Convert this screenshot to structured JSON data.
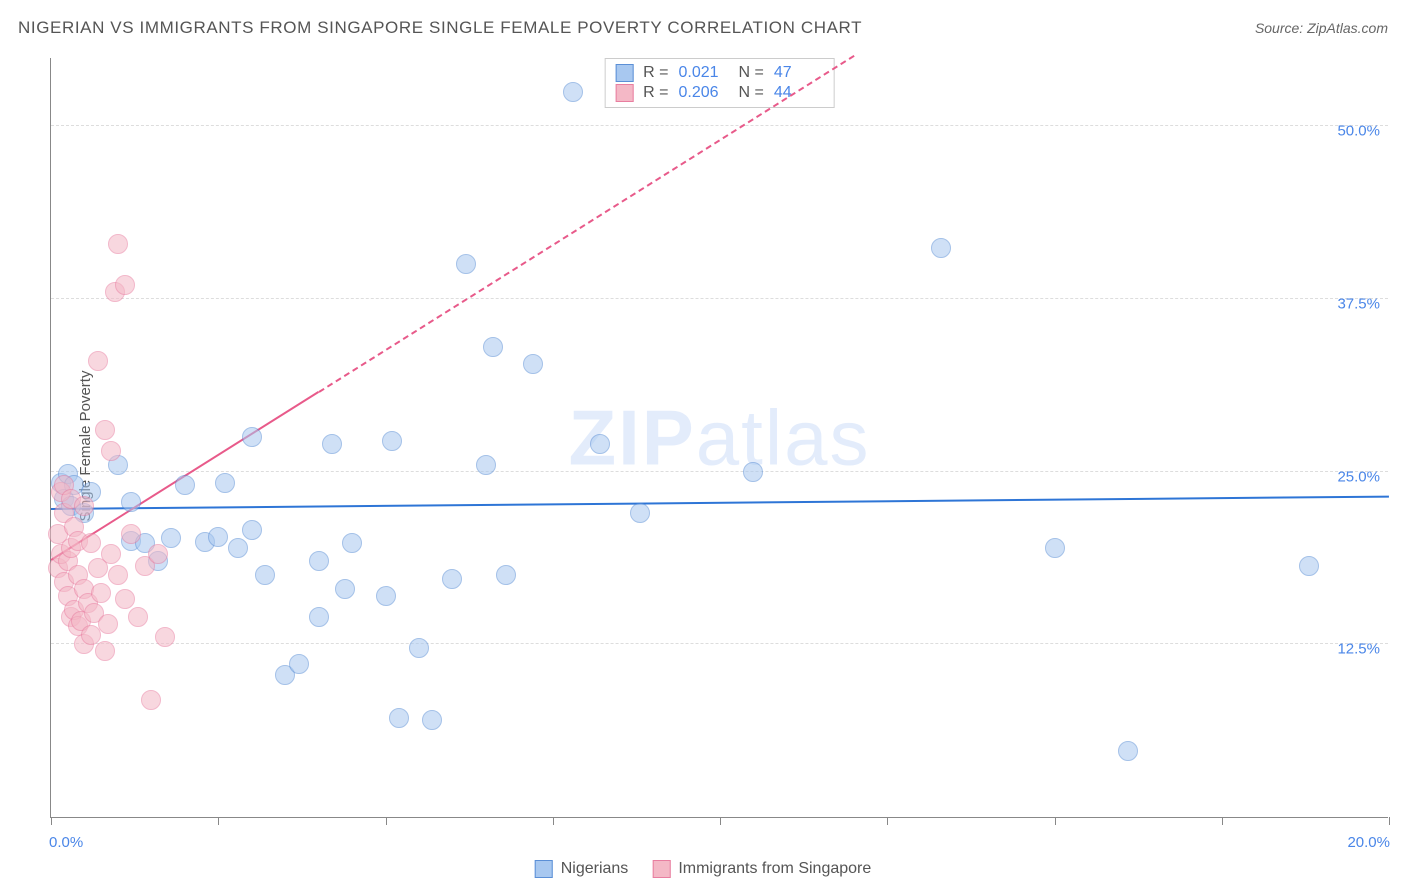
{
  "title": "NIGERIAN VS IMMIGRANTS FROM SINGAPORE SINGLE FEMALE POVERTY CORRELATION CHART",
  "source": "Source: ZipAtlas.com",
  "y_axis_label": "Single Female Poverty",
  "watermark_bold": "ZIP",
  "watermark_light": "atlas",
  "chart": {
    "type": "scatter",
    "xlim": [
      0,
      20
    ],
    "ylim": [
      0,
      55
    ],
    "x_ticks": [
      0,
      2.5,
      5,
      7.5,
      10,
      12.5,
      15,
      17.5,
      20
    ],
    "x_tick_labels": {
      "0": "0.0%",
      "20": "20.0%"
    },
    "y_grid": [
      12.5,
      25.0,
      37.5,
      50.0
    ],
    "y_tick_labels": [
      "12.5%",
      "25.0%",
      "37.5%",
      "50.0%"
    ],
    "background_color": "#ffffff",
    "grid_color": "#dddddd",
    "axis_color": "#888888",
    "label_color": "#4a86e8",
    "marker_radius": 10,
    "marker_opacity": 0.55,
    "series": [
      {
        "key": "nigerians",
        "label": "Nigerians",
        "fill": "#a8c8f0",
        "stroke": "#5b8fd6",
        "trend_color": "#2e75d6",
        "trend_width": 2.5,
        "trend_dash_after_x": 20,
        "trend": {
          "x1": 0,
          "y1": 22.2,
          "x2": 20,
          "y2": 23.1
        },
        "R": "0.021",
        "N": "47",
        "points": [
          [
            0.15,
            24.2
          ],
          [
            0.2,
            23.0
          ],
          [
            0.25,
            24.8
          ],
          [
            0.3,
            22.5
          ],
          [
            0.35,
            24.0
          ],
          [
            0.5,
            22.0
          ],
          [
            0.6,
            23.5
          ],
          [
            1.0,
            25.5
          ],
          [
            1.2,
            20.0
          ],
          [
            1.2,
            22.8
          ],
          [
            1.4,
            19.8
          ],
          [
            1.6,
            18.5
          ],
          [
            1.8,
            20.2
          ],
          [
            2.0,
            24.0
          ],
          [
            2.3,
            19.9
          ],
          [
            2.5,
            20.3
          ],
          [
            2.6,
            24.2
          ],
          [
            2.8,
            19.5
          ],
          [
            3.0,
            20.8
          ],
          [
            3.0,
            27.5
          ],
          [
            3.2,
            17.5
          ],
          [
            3.5,
            10.3
          ],
          [
            3.7,
            11.1
          ],
          [
            4.0,
            14.5
          ],
          [
            4.0,
            18.5
          ],
          [
            4.2,
            27.0
          ],
          [
            4.4,
            16.5
          ],
          [
            4.5,
            19.8
          ],
          [
            5.0,
            16.0
          ],
          [
            5.1,
            27.2
          ],
          [
            5.2,
            7.2
          ],
          [
            5.5,
            12.2
          ],
          [
            5.7,
            7.0
          ],
          [
            6.0,
            17.2
          ],
          [
            6.2,
            40.0
          ],
          [
            6.5,
            25.5
          ],
          [
            6.6,
            34.0
          ],
          [
            6.8,
            17.5
          ],
          [
            7.2,
            32.8
          ],
          [
            7.8,
            52.5
          ],
          [
            8.2,
            27.0
          ],
          [
            8.8,
            22.0
          ],
          [
            10.5,
            25.0
          ],
          [
            13.3,
            41.2
          ],
          [
            15.0,
            19.5
          ],
          [
            16.1,
            4.8
          ],
          [
            18.8,
            18.2
          ]
        ]
      },
      {
        "key": "singapore",
        "label": "Immigrants from Singapore",
        "fill": "#f4b8c6",
        "stroke": "#e87ea0",
        "trend_color": "#e85a8a",
        "trend_width": 2,
        "trend_dash_after_x": 4,
        "trend": {
          "x1": 0,
          "y1": 18.5,
          "x2": 12,
          "y2": 55
        },
        "R": "0.206",
        "N": "44",
        "points": [
          [
            0.1,
            18.0
          ],
          [
            0.1,
            20.5
          ],
          [
            0.15,
            19.0
          ],
          [
            0.15,
            23.5
          ],
          [
            0.2,
            17.0
          ],
          [
            0.2,
            22.0
          ],
          [
            0.2,
            24.0
          ],
          [
            0.25,
            16.0
          ],
          [
            0.25,
            18.5
          ],
          [
            0.3,
            14.5
          ],
          [
            0.3,
            19.5
          ],
          [
            0.3,
            23.0
          ],
          [
            0.35,
            15.0
          ],
          [
            0.35,
            21.0
          ],
          [
            0.4,
            13.8
          ],
          [
            0.4,
            17.5
          ],
          [
            0.4,
            20.0
          ],
          [
            0.45,
            14.2
          ],
          [
            0.5,
            12.5
          ],
          [
            0.5,
            16.5
          ],
          [
            0.5,
            22.5
          ],
          [
            0.55,
            15.5
          ],
          [
            0.6,
            13.2
          ],
          [
            0.6,
            19.8
          ],
          [
            0.65,
            14.8
          ],
          [
            0.7,
            18.0
          ],
          [
            0.7,
            33.0
          ],
          [
            0.75,
            16.2
          ],
          [
            0.8,
            12.0
          ],
          [
            0.8,
            28.0
          ],
          [
            0.85,
            14.0
          ],
          [
            0.9,
            19.0
          ],
          [
            0.9,
            26.5
          ],
          [
            0.95,
            38.0
          ],
          [
            1.0,
            17.5
          ],
          [
            1.0,
            41.5
          ],
          [
            1.1,
            15.8
          ],
          [
            1.1,
            38.5
          ],
          [
            1.2,
            20.5
          ],
          [
            1.3,
            14.5
          ],
          [
            1.4,
            18.2
          ],
          [
            1.5,
            8.5
          ],
          [
            1.6,
            19.0
          ],
          [
            1.7,
            13.0
          ]
        ]
      }
    ]
  },
  "stats_box": {
    "rows": [
      {
        "swatch_fill": "#a8c8f0",
        "swatch_stroke": "#5b8fd6",
        "r_label": "R =",
        "r_val": "0.021",
        "n_label": "N =",
        "n_val": "47"
      },
      {
        "swatch_fill": "#f4b8c6",
        "swatch_stroke": "#e87ea0",
        "r_label": "R =",
        "r_val": "0.206",
        "n_label": "N =",
        "n_val": "44"
      }
    ]
  },
  "bottom_legend": [
    {
      "swatch_fill": "#a8c8f0",
      "swatch_stroke": "#5b8fd6",
      "label": "Nigerians"
    },
    {
      "swatch_fill": "#f4b8c6",
      "swatch_stroke": "#e87ea0",
      "label": "Immigrants from Singapore"
    }
  ]
}
